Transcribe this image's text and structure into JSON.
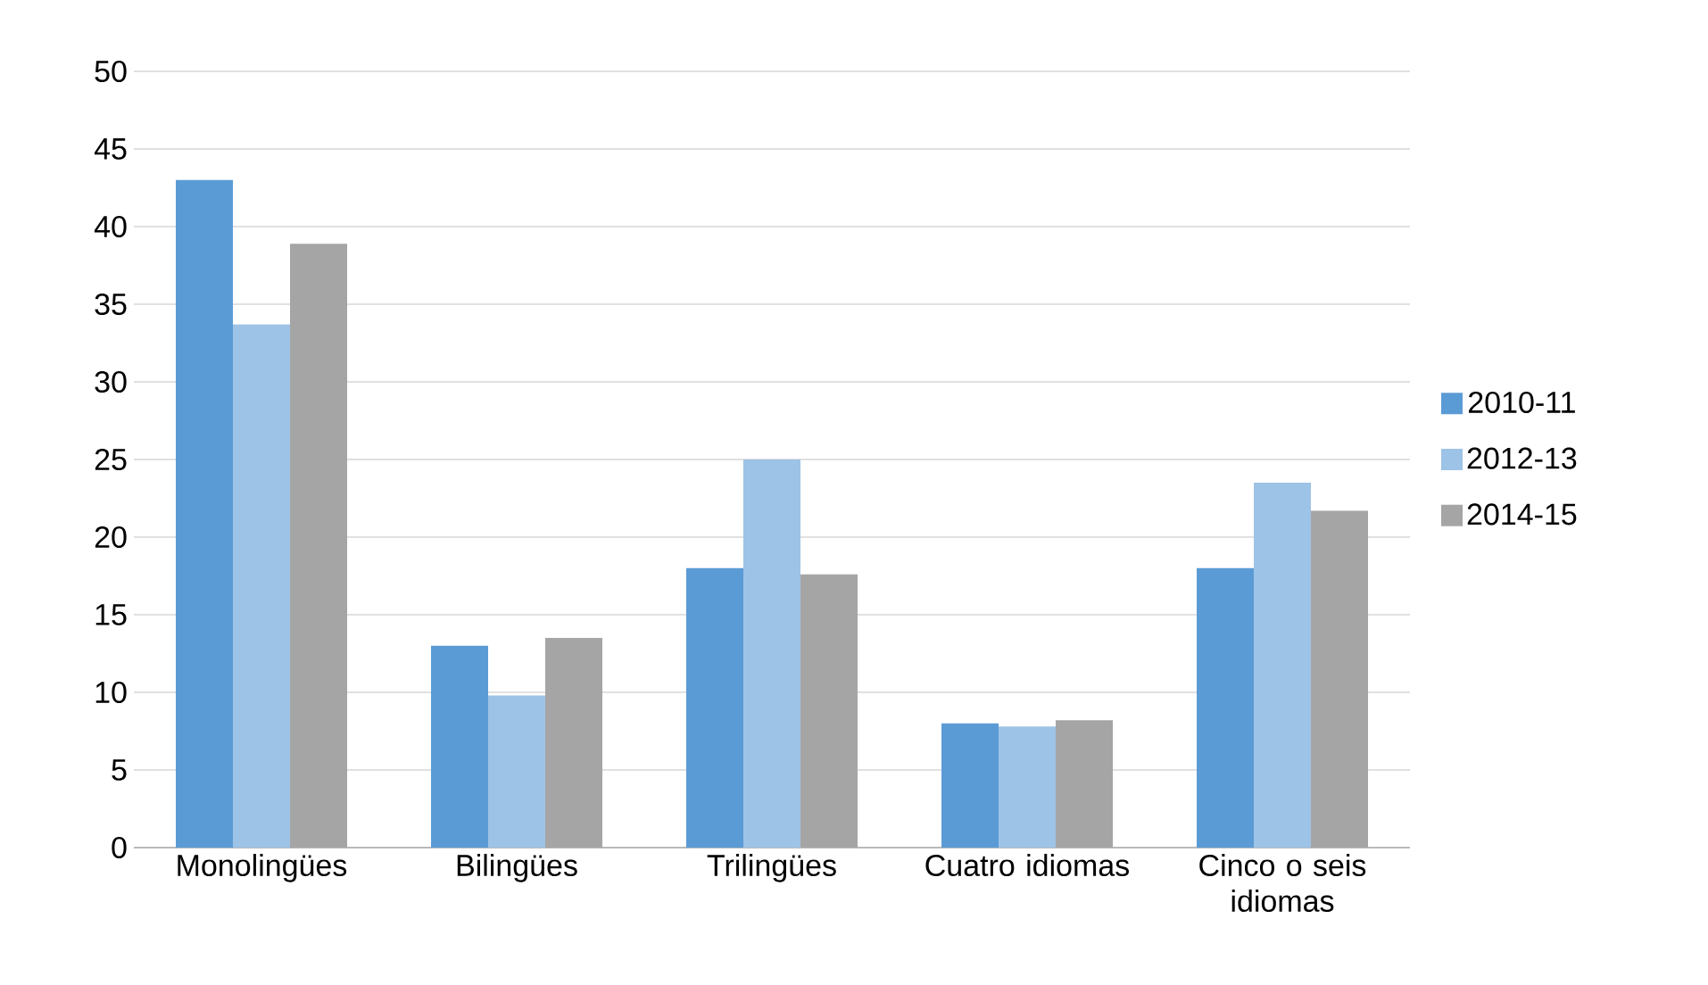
{
  "chart_data": {
    "type": "bar",
    "categories": [
      "Monolingües",
      "Bilingües",
      "Trilingües",
      "Cuatro idiomas",
      "Cinco o seis idiomas"
    ],
    "series": [
      {
        "name": "2010-11",
        "color": "#5b9bd5",
        "values": [
          43,
          13,
          18,
          8,
          18
        ]
      },
      {
        "name": "2012-13",
        "color": "#9dc3e6",
        "values": [
          33.7,
          9.8,
          25,
          7.8,
          23.5
        ]
      },
      {
        "name": "2014-15",
        "color": "#a5a5a5",
        "values": [
          38.9,
          13.5,
          17.6,
          8.2,
          21.7
        ]
      }
    ],
    "ylim": [
      0,
      50
    ],
    "yticks": [
      0,
      5,
      10,
      15,
      20,
      25,
      30,
      35,
      40,
      45,
      50
    ],
    "grid": "y",
    "legend": "right"
  }
}
